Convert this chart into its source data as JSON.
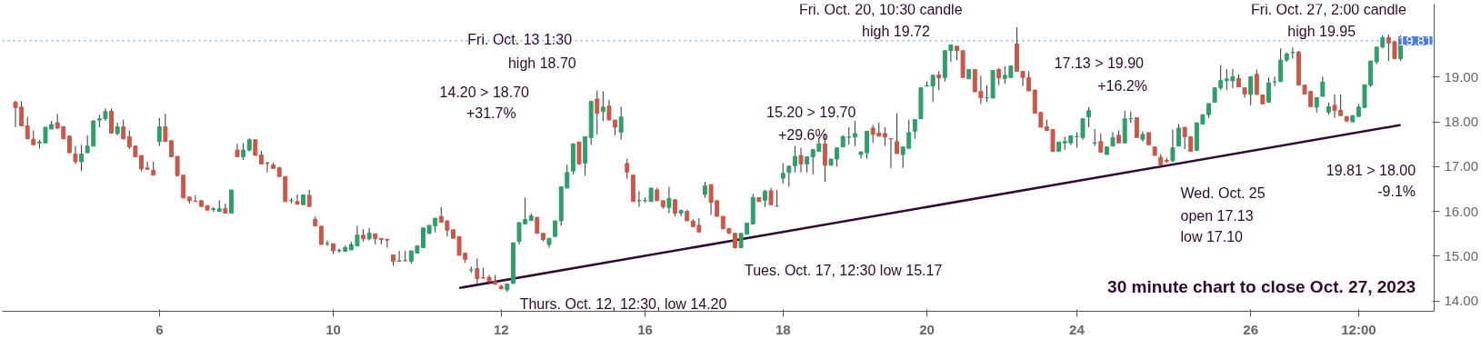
{
  "chart_data": {
    "type": "candlestick",
    "title": "30 minute chart to close Oct. 27, 2023",
    "ohlc": [
      [
        18.44,
        18.47,
        17.88,
        18.32
      ],
      [
        18.33,
        18.46,
        17.91,
        17.91
      ],
      [
        17.91,
        18.11,
        17.62,
        17.62
      ],
      [
        17.61,
        17.81,
        17.49,
        17.49
      ],
      [
        17.53,
        17.6,
        17.41,
        17.55
      ],
      [
        17.53,
        17.88,
        17.53,
        17.88
      ],
      [
        17.84,
        18.02,
        17.84,
        17.94
      ],
      [
        17.98,
        18.18,
        17.84,
        17.86
      ],
      [
        17.89,
        17.91,
        17.62,
        17.62
      ],
      [
        17.68,
        17.7,
        17.31,
        17.31
      ],
      [
        17.28,
        17.46,
        17.06,
        17.11
      ],
      [
        17.11,
        17.49,
        16.9,
        17.28
      ],
      [
        17.31,
        17.7,
        17.31,
        17.46
      ],
      [
        17.46,
        18.04,
        17.46,
        18.02
      ],
      [
        18.04,
        18.16,
        17.88,
        18.07
      ],
      [
        18.07,
        18.3,
        18.02,
        18.23
      ],
      [
        18.24,
        18.3,
        17.75,
        17.75
      ],
      [
        17.74,
        17.98,
        17.7,
        17.89
      ],
      [
        17.89,
        18.05,
        17.62,
        17.62
      ],
      [
        17.67,
        17.81,
        17.39,
        17.44
      ],
      [
        17.46,
        17.46,
        17.22,
        17.22
      ],
      [
        17.25,
        17.25,
        16.9,
        16.95
      ],
      [
        16.97,
        17.11,
        16.94,
        16.94
      ],
      [
        16.92,
        17.11,
        16.81,
        16.81
      ],
      [
        17.56,
        18.09,
        17.46,
        17.89
      ],
      [
        17.89,
        18.18,
        17.56,
        17.56
      ],
      [
        17.58,
        17.58,
        17.22,
        17.22
      ],
      [
        17.23,
        17.23,
        16.78,
        16.8
      ],
      [
        16.81,
        16.81,
        16.3,
        16.3
      ],
      [
        16.32,
        16.32,
        16.17,
        16.24
      ],
      [
        16.23,
        16.36,
        16.22,
        16.22
      ],
      [
        16.24,
        16.24,
        16.11,
        16.11
      ],
      [
        16.13,
        16.13,
        16.03,
        16.03
      ],
      [
        16.04,
        16.1,
        15.99,
        16.06
      ],
      [
        16.0,
        16.25,
        16.0,
        16.06
      ],
      [
        16.06,
        16.17,
        15.96,
        15.96
      ],
      [
        15.96,
        16.48,
        15.96,
        16.48
      ],
      [
        17.37,
        17.51,
        17.22,
        17.22
      ],
      [
        17.22,
        17.53,
        17.15,
        17.37
      ],
      [
        17.37,
        17.63,
        17.34,
        17.6
      ],
      [
        17.6,
        17.6,
        17.25,
        17.25
      ],
      [
        17.26,
        17.35,
        17.06,
        17.06
      ],
      [
        17.08,
        17.11,
        16.87,
        17.07
      ],
      [
        17.04,
        17.09,
        16.96,
        16.96
      ],
      [
        16.97,
        17.0,
        16.78,
        16.78
      ],
      [
        16.78,
        16.78,
        16.22,
        16.22
      ],
      [
        16.24,
        16.3,
        16.18,
        16.24
      ],
      [
        16.22,
        16.38,
        16.16,
        16.16
      ],
      [
        16.15,
        16.37,
        16.15,
        16.37
      ],
      [
        16.36,
        16.48,
        16.11,
        16.11
      ],
      [
        15.82,
        15.89,
        15.68,
        15.68
      ],
      [
        15.67,
        15.67,
        15.26,
        15.26
      ],
      [
        15.28,
        15.35,
        15.23,
        15.28
      ],
      [
        15.28,
        15.28,
        15.05,
        15.12
      ],
      [
        15.12,
        15.17,
        15.08,
        15.13
      ],
      [
        15.11,
        15.24,
        15.11,
        15.19
      ],
      [
        15.14,
        15.32,
        15.14,
        15.26
      ],
      [
        15.23,
        15.68,
        15.23,
        15.47
      ],
      [
        15.47,
        15.6,
        15.33,
        15.39
      ],
      [
        15.39,
        15.63,
        15.35,
        15.51
      ],
      [
        15.5,
        15.5,
        15.26,
        15.39
      ],
      [
        15.4,
        15.4,
        15.26,
        15.37
      ],
      [
        15.38,
        15.38,
        15.19,
        15.36
      ],
      [
        15.03,
        15.03,
        14.79,
        14.89
      ],
      [
        14.9,
        15.12,
        14.89,
        14.89
      ],
      [
        14.9,
        15.12,
        14.89,
        14.9
      ],
      [
        14.89,
        15.12,
        14.83,
        15.12
      ],
      [
        15.07,
        15.23,
        15.07,
        15.23
      ],
      [
        15.19,
        15.63,
        15.19,
        15.63
      ],
      [
        15.51,
        15.69,
        15.49,
        15.69
      ],
      [
        15.68,
        15.85,
        15.53,
        15.85
      ],
      [
        15.89,
        16.1,
        15.76,
        15.76
      ],
      [
        15.79,
        15.79,
        15.44,
        15.58
      ],
      [
        15.59,
        15.59,
        15.4,
        15.4
      ],
      [
        15.44,
        15.44,
        15.02,
        15.02
      ],
      [
        15.07,
        15.07,
        14.85,
        14.93
      ],
      [
        14.69,
        14.77,
        14.63,
        14.69
      ],
      [
        14.72,
        14.95,
        14.39,
        14.5
      ],
      [
        14.52,
        14.74,
        14.51,
        14.51
      ],
      [
        14.53,
        14.58,
        14.43,
        14.43
      ],
      [
        14.43,
        14.58,
        14.37,
        14.37
      ],
      [
        14.33,
        14.36,
        14.27,
        14.27
      ],
      [
        14.25,
        14.39,
        14.2,
        14.38
      ],
      [
        14.39,
        15.3,
        14.39,
        15.3
      ],
      [
        15.33,
        15.75,
        15.26,
        15.75
      ],
      [
        15.72,
        16.31,
        15.72,
        15.82
      ],
      [
        15.8,
        15.96,
        15.8,
        15.9
      ],
      [
        15.87,
        15.87,
        15.51,
        15.51
      ],
      [
        15.51,
        15.51,
        15.33,
        15.37
      ],
      [
        15.26,
        15.4,
        15.19,
        15.4
      ],
      [
        15.44,
        15.79,
        15.44,
        15.79
      ],
      [
        15.79,
        16.55,
        15.68,
        16.55
      ],
      [
        16.52,
        17.04,
        16.52,
        16.87
      ],
      [
        16.9,
        17.51,
        16.83,
        17.51
      ],
      [
        17.55,
        17.56,
        17.06,
        17.06
      ],
      [
        17.08,
        17.67,
        16.8,
        17.67
      ],
      [
        17.65,
        18.46,
        17.49,
        18.46
      ],
      [
        18.51,
        18.7,
        17.72,
        18.19
      ],
      [
        18.23,
        18.68,
        18.02,
        18.33
      ],
      [
        18.35,
        18.49,
        18.04,
        18.04
      ],
      [
        18.04,
        18.04,
        17.7,
        17.88
      ],
      [
        17.77,
        18.34,
        17.6,
        18.11
      ],
      [
        17.07,
        17.18,
        16.73,
        16.88
      ],
      [
        16.81,
        16.81,
        16.22,
        16.22
      ],
      [
        16.24,
        16.45,
        16.1,
        16.24
      ],
      [
        16.24,
        16.31,
        16.2,
        16.24
      ],
      [
        16.22,
        16.52,
        16.22,
        16.52
      ],
      [
        16.48,
        16.53,
        16.24,
        16.24
      ],
      [
        16.24,
        16.24,
        16.06,
        16.11
      ],
      [
        16.09,
        16.55,
        15.96,
        16.29
      ],
      [
        16.26,
        16.26,
        15.89,
        15.96
      ],
      [
        15.96,
        16.04,
        15.89,
        16.02
      ],
      [
        16.0,
        16.03,
        15.79,
        15.79
      ],
      [
        15.78,
        15.83,
        15.66,
        15.66
      ],
      [
        15.69,
        15.85,
        15.54,
        15.54
      ],
      [
        16.38,
        16.66,
        16.31,
        16.57
      ],
      [
        16.6,
        16.6,
        15.92,
        16.2
      ],
      [
        16.24,
        16.24,
        15.89,
        15.89
      ],
      [
        15.89,
        15.89,
        15.61,
        15.61
      ],
      [
        15.62,
        15.62,
        15.51,
        15.51
      ],
      [
        15.51,
        15.51,
        15.17,
        15.19
      ],
      [
        15.19,
        15.51,
        15.19,
        15.51
      ],
      [
        15.49,
        15.74,
        15.49,
        15.74
      ],
      [
        15.72,
        16.39,
        15.72,
        16.31
      ],
      [
        16.31,
        16.31,
        16.22,
        16.22
      ],
      [
        16.25,
        16.48,
        16.1,
        16.45
      ],
      [
        16.46,
        16.52,
        16.15,
        16.15
      ],
      [
        16.12,
        16.48,
        16.11,
        16.12
      ],
      [
        16.74,
        17.08,
        16.62,
        16.85
      ],
      [
        16.87,
        17.01,
        16.55,
        17.01
      ],
      [
        17.02,
        17.46,
        16.87,
        17.23
      ],
      [
        17.25,
        17.42,
        16.87,
        17.06
      ],
      [
        17.06,
        17.22,
        16.87,
        17.22
      ],
      [
        17.22,
        17.38,
        16.83,
        17.38
      ],
      [
        17.34,
        17.6,
        17.34,
        17.51
      ],
      [
        17.51,
        17.74,
        16.66,
        17.03
      ],
      [
        17.03,
        17.17,
        17.03,
        17.17
      ],
      [
        17.17,
        17.42,
        17.0,
        17.42
      ],
      [
        17.44,
        17.7,
        17.44,
        17.67
      ],
      [
        17.66,
        17.88,
        17.49,
        17.66
      ],
      [
        17.66,
        18.02,
        17.46,
        17.74
      ],
      [
        17.27,
        17.33,
        17.18,
        17.33
      ],
      [
        17.31,
        17.79,
        17.18,
        17.79
      ],
      [
        17.86,
        17.93,
        17.53,
        17.72
      ],
      [
        17.75,
        17.98,
        17.68,
        17.68
      ],
      [
        17.74,
        17.88,
        17.46,
        17.66
      ],
      [
        17.63,
        17.63,
        16.97,
        17.62
      ],
      [
        17.56,
        18.19,
        17.29,
        17.29
      ],
      [
        17.27,
        17.44,
        16.97,
        17.44
      ],
      [
        17.41,
        18.05,
        17.41,
        17.76
      ],
      [
        17.79,
        18.05,
        17.62,
        18.05
      ],
      [
        18.07,
        18.76,
        18.07,
        18.76
      ],
      [
        18.8,
        18.9,
        18.8,
        18.81
      ],
      [
        18.8,
        19.04,
        18.44,
        19.04
      ],
      [
        19.05,
        19.13,
        18.71,
        18.98
      ],
      [
        18.99,
        19.59,
        18.9,
        19.59
      ],
      [
        19.59,
        19.72,
        19.34,
        19.72
      ],
      [
        19.69,
        19.69,
        19.38,
        19.59
      ],
      [
        19.59,
        19.59,
        18.99,
        18.99
      ],
      [
        18.96,
        19.17,
        18.96,
        19.17
      ],
      [
        19.17,
        19.17,
        18.67,
        18.67
      ],
      [
        18.68,
        19.03,
        18.4,
        18.54
      ],
      [
        18.54,
        18.82,
        18.44,
        18.54
      ],
      [
        18.53,
        19.15,
        18.53,
        19.15
      ],
      [
        19.17,
        19.2,
        18.82,
        18.98
      ],
      [
        18.97,
        19.24,
        18.85,
        19.04
      ],
      [
        18.99,
        19.25,
        18.99,
        19.25
      ],
      [
        19.74,
        20.11,
        19.13,
        19.13
      ],
      [
        19.13,
        19.13,
        18.8,
        18.99
      ],
      [
        18.99,
        19.13,
        18.69,
        18.69
      ],
      [
        18.71,
        18.71,
        18.19,
        18.19
      ],
      [
        18.21,
        18.21,
        17.88,
        17.88
      ],
      [
        17.89,
        18.05,
        17.81,
        17.81
      ],
      [
        17.83,
        17.83,
        17.34,
        17.34
      ],
      [
        17.34,
        17.55,
        17.34,
        17.55
      ],
      [
        17.53,
        17.67,
        17.37,
        17.56
      ],
      [
        17.53,
        17.69,
        17.48,
        17.69
      ],
      [
        17.67,
        17.77,
        17.42,
        17.67
      ],
      [
        17.65,
        18.07,
        17.6,
        18.07
      ],
      [
        18.11,
        18.33,
        17.88,
        18.25
      ],
      [
        17.53,
        17.84,
        17.46,
        17.53
      ],
      [
        17.56,
        17.74,
        17.32,
        17.32
      ],
      [
        17.27,
        17.44,
        17.27,
        17.44
      ],
      [
        17.46,
        17.77,
        17.46,
        17.65
      ],
      [
        17.7,
        17.81,
        17.53,
        17.53
      ],
      [
        17.53,
        18.25,
        17.53,
        18.07
      ],
      [
        18.07,
        18.23,
        17.98,
        18.07
      ],
      [
        18.09,
        18.09,
        17.65,
        17.65
      ],
      [
        17.61,
        17.79,
        17.56,
        17.72
      ],
      [
        17.76,
        17.76,
        17.49,
        17.49
      ],
      [
        17.44,
        17.44,
        17.25,
        17.25
      ],
      [
        17.21,
        17.28,
        17.04,
        17.04
      ],
      [
        17.14,
        17.2,
        17.08,
        17.12
      ],
      [
        17.13,
        17.83,
        17.1,
        17.42
      ],
      [
        17.46,
        17.95,
        17.46,
        17.86
      ],
      [
        17.88,
        17.88,
        17.39,
        17.67
      ],
      [
        17.67,
        17.67,
        17.34,
        17.34
      ],
      [
        17.36,
        17.98,
        17.36,
        17.98
      ],
      [
        17.95,
        18.16,
        17.95,
        18.16
      ],
      [
        18.16,
        18.41,
        18.09,
        18.41
      ],
      [
        18.44,
        18.76,
        18.44,
        18.76
      ],
      [
        18.76,
        19.27,
        18.71,
        18.92
      ],
      [
        18.92,
        19.18,
        18.71,
        18.96
      ],
      [
        18.92,
        19.18,
        18.75,
        19.01
      ],
      [
        18.97,
        19.06,
        18.78,
        18.78
      ],
      [
        18.76,
        18.76,
        18.54,
        18.62
      ],
      [
        18.61,
        19.01,
        18.37,
        19.01
      ],
      [
        19.06,
        19.17,
        18.61,
        18.61
      ],
      [
        18.6,
        18.6,
        18.4,
        18.4
      ],
      [
        18.44,
        18.99,
        18.44,
        18.87
      ],
      [
        18.89,
        19.01,
        18.8,
        18.89
      ],
      [
        18.9,
        19.64,
        18.9,
        19.38
      ],
      [
        19.38,
        19.55,
        19.34,
        19.52
      ],
      [
        19.55,
        19.66,
        19.41,
        19.55
      ],
      [
        19.56,
        19.58,
        18.82,
        18.82
      ],
      [
        18.82,
        18.82,
        18.62,
        18.62
      ],
      [
        18.68,
        18.68,
        18.34,
        18.34
      ],
      [
        18.33,
        18.54,
        18.21,
        18.54
      ],
      [
        18.57,
        19.01,
        18.57,
        18.89
      ],
      [
        18.22,
        18.43,
        18.16,
        18.34
      ],
      [
        18.37,
        18.61,
        18.09,
        18.25
      ],
      [
        18.26,
        18.61,
        18.14,
        18.14
      ],
      [
        18.12,
        18.12,
        17.99,
        18.02
      ],
      [
        18.0,
        18.14,
        18.0,
        18.14
      ],
      [
        18.12,
        18.4,
        18.12,
        18.33
      ],
      [
        18.32,
        18.83,
        18.32,
        18.83
      ],
      [
        18.82,
        19.36,
        18.78,
        19.36
      ],
      [
        19.34,
        19.67,
        19.29,
        19.67
      ],
      [
        19.67,
        19.93,
        19.64,
        19.88
      ],
      [
        19.88,
        19.95,
        19.36,
        19.76
      ],
      [
        19.79,
        19.79,
        19.41,
        19.41
      ],
      [
        19.41,
        19.93,
        19.36,
        19.81
      ]
    ],
    "colors": [
      "#c8584a",
      "#c8584a",
      "#c8584a",
      "#c8584a",
      "#2f9e6b",
      "#2f9e6b",
      "#2f9e6b",
      "#c8584a",
      "#c8584a",
      "#c8584a",
      "#c8584a",
      "#2f9e6b",
      "#2f9e6b",
      "#2f9e6b",
      "#2f9e6b",
      "#2f9e6b",
      "#c8584a",
      "#2f9e6b",
      "#c8584a",
      "#c8584a",
      "#c8584a",
      "#c8584a",
      "#c8584a",
      "#c8584a",
      "#2f9e6b",
      "#c8584a",
      "#c8584a",
      "#c8584a",
      "#c8584a",
      "#c8584a",
      "#c8584a",
      "#c8584a",
      "#c8584a",
      "#2f9e6b",
      "#2f9e6b",
      "#c8584a",
      "#2f9e6b",
      "#c8584a",
      "#2f9e6b",
      "#2f9e6b",
      "#c8584a",
      "#c8584a",
      "#c8584a",
      "#c8584a",
      "#c8584a",
      "#c8584a",
      "#2f9e6b",
      "#c8584a",
      "#2f9e6b",
      "#c8584a",
      "#c8584a",
      "#c8584a",
      "#2f9e6b",
      "#c8584a",
      "#2f9e6b",
      "#2f9e6b",
      "#2f9e6b",
      "#2f9e6b",
      "#c8584a",
      "#2f9e6b",
      "#c8584a",
      "#c8584a",
      "#c8584a",
      "#c8584a",
      "#c8584a",
      "#2f9e6b",
      "#2f9e6b",
      "#2f9e6b",
      "#2f9e6b",
      "#2f9e6b",
      "#2f9e6b",
      "#c8584a",
      "#c8584a",
      "#c8584a",
      "#c8584a",
      "#c8584a",
      "#2f9e6b",
      "#c8584a",
      "#c8584a",
      "#c8584a",
      "#c8584a",
      "#c8584a",
      "#2f9e6b",
      "#2f9e6b",
      "#2f9e6b",
      "#2f9e6b",
      "#2f9e6b",
      "#c8584a",
      "#c8584a",
      "#2f9e6b",
      "#2f9e6b",
      "#2f9e6b",
      "#2f9e6b",
      "#2f9e6b",
      "#c8584a",
      "#2f9e6b",
      "#2f9e6b",
      "#c8584a",
      "#2f9e6b",
      "#c8584a",
      "#c8584a",
      "#2f9e6b",
      "#c8584a",
      "#c8584a",
      "#2f9e6b",
      "#2f9e6b",
      "#2f9e6b",
      "#c8584a",
      "#c8584a",
      "#2f9e6b",
      "#c8584a",
      "#2f9e6b",
      "#c8584a",
      "#c8584a",
      "#c8584a",
      "#2f9e6b",
      "#c8584a",
      "#c8584a",
      "#c8584a",
      "#c8584a",
      "#c8584a",
      "#2f9e6b",
      "#2f9e6b",
      "#2f9e6b",
      "#c8584a",
      "#2f9e6b",
      "#c8584a",
      "#2f9e6b",
      "#2f9e6b",
      "#2f9e6b",
      "#2f9e6b",
      "#c8584a",
      "#2f9e6b",
      "#2f9e6b",
      "#2f9e6b",
      "#c8584a",
      "#2f9e6b",
      "#2f9e6b",
      "#2f9e6b",
      "#2f9e6b",
      "#2f9e6b",
      "#2f9e6b",
      "#2f9e6b",
      "#c8584a",
      "#c8584a",
      "#c8584a",
      "#c8584a",
      "#c8584a",
      "#2f9e6b",
      "#2f9e6b",
      "#2f9e6b",
      "#2f9e6b",
      "#2f9e6b",
      "#2f9e6b",
      "#c8584a",
      "#2f9e6b",
      "#2f9e6b",
      "#c8584a",
      "#c8584a",
      "#2f9e6b",
      "#c8584a",
      "#c8584a",
      "#2f9e6b",
      "#2f9e6b",
      "#c8584a",
      "#2f9e6b",
      "#2f9e6b",
      "#c8584a",
      "#c8584a",
      "#c8584a",
      "#c8584a",
      "#c8584a",
      "#c8584a",
      "#c8584a",
      "#2f9e6b",
      "#2f9e6b",
      "#2f9e6b",
      "#2f9e6b",
      "#2f9e6b",
      "#2f9e6b",
      "#2f9e6b",
      "#c8584a",
      "#2f9e6b",
      "#2f9e6b",
      "#c8584a",
      "#2f9e6b",
      "#2f9e6b",
      "#c8584a",
      "#2f9e6b",
      "#c8584a",
      "#c8584a",
      "#c8584a",
      "#c8584a",
      "#2f9e6b",
      "#2f9e6b",
      "#c8584a",
      "#c8584a",
      "#2f9e6b",
      "#2f9e6b",
      "#2f9e6b",
      "#2f9e6b",
      "#2f9e6b",
      "#2f9e6b",
      "#2f9e6b",
      "#c8584a",
      "#c8584a",
      "#2f9e6b",
      "#c8584a",
      "#c8584a",
      "#2f9e6b",
      "#2f9e6b",
      "#2f9e6b",
      "#2f9e6b",
      "#2f9e6b",
      "#c8584a",
      "#c8584a",
      "#c8584a",
      "#2f9e6b",
      "#2f9e6b",
      "#2f9e6b",
      "#c8584a",
      "#c8584a",
      "#c8584a",
      "#2f9e6b",
      "#2f9e6b",
      "#2f9e6b",
      "#2f9e6b",
      "#2f9e6b",
      "#2f9e6b",
      "#c8584a",
      "#c8584a",
      "#2f9e6b"
    ],
    "series": [
      {
        "type": "line",
        "color": "#2d0a2e",
        "values": [
          null,
          null,
          null,
          null,
          null,
          null,
          null,
          null,
          null,
          null,
          null,
          null,
          null,
          null,
          null,
          null,
          null,
          null,
          null,
          null,
          null,
          null,
          null,
          null,
          null,
          null,
          null,
          null,
          null,
          null,
          null,
          null,
          null,
          null,
          null,
          null,
          null,
          null,
          null,
          null,
          null,
          null,
          null,
          null,
          null,
          null,
          null,
          null,
          null,
          null,
          null,
          null,
          null,
          null,
          null,
          null,
          null,
          null,
          null,
          null,
          null,
          null,
          null,
          null,
          null,
          null,
          null,
          null,
          null,
          null,
          null,
          null,
          null,
          null,
          14.29,
          null,
          null,
          null,
          null,
          null,
          null,
          null,
          null,
          null,
          null,
          null,
          null,
          null,
          null,
          null,
          null,
          null,
          null,
          null,
          null,
          null,
          null,
          null,
          null,
          null,
          null,
          null,
          null,
          null,
          null,
          null,
          null,
          null,
          null,
          null,
          null,
          null,
          null,
          null,
          null,
          null,
          null,
          null,
          null,
          null,
          null,
          null,
          null,
          null,
          null,
          null,
          null,
          null,
          null,
          null,
          null,
          null,
          null,
          null,
          null,
          null,
          null,
          null,
          null,
          null,
          null,
          null,
          null,
          null,
          null,
          null,
          null,
          null,
          null,
          null,
          null,
          null,
          null,
          null,
          null,
          null,
          null,
          null,
          null,
          null,
          null,
          null,
          null,
          null,
          null,
          null,
          null,
          null,
          null,
          null,
          null,
          null,
          null,
          null,
          null,
          null,
          null,
          null,
          null,
          null,
          null,
          null,
          null,
          null,
          null,
          null,
          null,
          null,
          null,
          null,
          null,
          null,
          null,
          null,
          null,
          null,
          null,
          null,
          null,
          null,
          null,
          null,
          null,
          null,
          null,
          null,
          null,
          null,
          null,
          null,
          null,
          null,
          null,
          null,
          null,
          null,
          null,
          null,
          null,
          null,
          null,
          null,
          null,
          null,
          null,
          null,
          null,
          null,
          null,
          null,
          null,
          17.93
        ]
      }
    ],
    "ylim": [
      13.77,
      20.63
    ],
    "categories": [
      null,
      null,
      null,
      null,
      null,
      null,
      null,
      null,
      null,
      null,
      null,
      null,
      null,
      null,
      null,
      null,
      null,
      null,
      null,
      null,
      null,
      null,
      null,
      null,
      "6",
      null,
      null,
      null,
      null,
      null,
      null,
      null,
      null,
      null,
      null,
      null,
      null,
      null,
      null,
      null,
      null,
      null,
      null,
      null,
      null,
      null,
      null,
      null,
      null,
      null,
      null,
      null,
      null,
      "10",
      null,
      null,
      null,
      null,
      null,
      null,
      null,
      null,
      null,
      null,
      null,
      null,
      null,
      null,
      null,
      null,
      null,
      null,
      null,
      null,
      null,
      null,
      null,
      null,
      null,
      null,
      null,
      "12",
      null,
      null,
      null,
      null,
      null,
      null,
      null,
      null,
      null,
      null,
      null,
      null,
      null,
      null,
      null,
      null,
      null,
      null,
      null,
      null,
      null,
      null,
      null,
      "16",
      null,
      null,
      null,
      null,
      null,
      null,
      null,
      null,
      null,
      null,
      null,
      null,
      null,
      null,
      null,
      null,
      null,
      null,
      null,
      null,
      null,
      null,
      "18",
      null,
      null,
      null,
      null,
      null,
      null,
      null,
      null,
      null,
      null,
      null,
      null,
      null,
      null,
      null,
      null,
      null,
      null,
      null,
      null,
      null,
      null,
      null,
      "20",
      null,
      null,
      null,
      null,
      null,
      null,
      null,
      null,
      null,
      null,
      null,
      null,
      null,
      null,
      null,
      null,
      null,
      null,
      null,
      null,
      null,
      null,
      null,
      null,
      "24",
      null,
      null,
      null,
      null,
      null,
      null,
      null,
      null,
      null,
      null,
      null,
      null,
      null,
      null,
      null,
      null,
      null,
      null,
      null,
      null,
      null,
      null,
      null,
      null,
      null,
      null,
      null,
      null,
      "26",
      null,
      null,
      null,
      null,
      null,
      null,
      null,
      null,
      null,
      null,
      null,
      null,
      null,
      null,
      null,
      null,
      null,
      "12:00",
      null,
      null,
      null,
      null,
      null,
      null,
      null
    ],
    "yticks": [
      {
        "value": 14,
        "label": "14.00"
      },
      {
        "value": 15,
        "label": "15.00"
      },
      {
        "value": 16,
        "label": "16.00"
      },
      {
        "value": 17,
        "label": "17.00"
      },
      {
        "value": 18,
        "label": "18.00"
      },
      {
        "value": 19,
        "label": "19.00"
      }
    ],
    "ref_lines": [
      {
        "axis": "y",
        "value": 19.81,
        "label": "19.81",
        "color": "#4a7fd8",
        "line_style": "dotted"
      }
    ],
    "annotations": [
      "Fri. Oct. 13 1:30",
      "high 18.70",
      "14.20 > 18.70",
      "+31.7%",
      "15.20 > 19.70",
      "+29.6%",
      "Fri. Oct. 20, 10:30 candle",
      "high 19.72",
      "17.13 > 19.90",
      "+16.2%",
      "Fri. Oct. 27, 2:00 candle",
      "high 19.95",
      "19.81 > 18.00",
      "-9.1%",
      "Wed. Oct. 25",
      "open 17.13",
      "low 17.10",
      "Tues. Oct. 17, 12:30 low 15.17",
      "Thurs. Oct. 12, 12:30, low 14.20"
    ]
  }
}
